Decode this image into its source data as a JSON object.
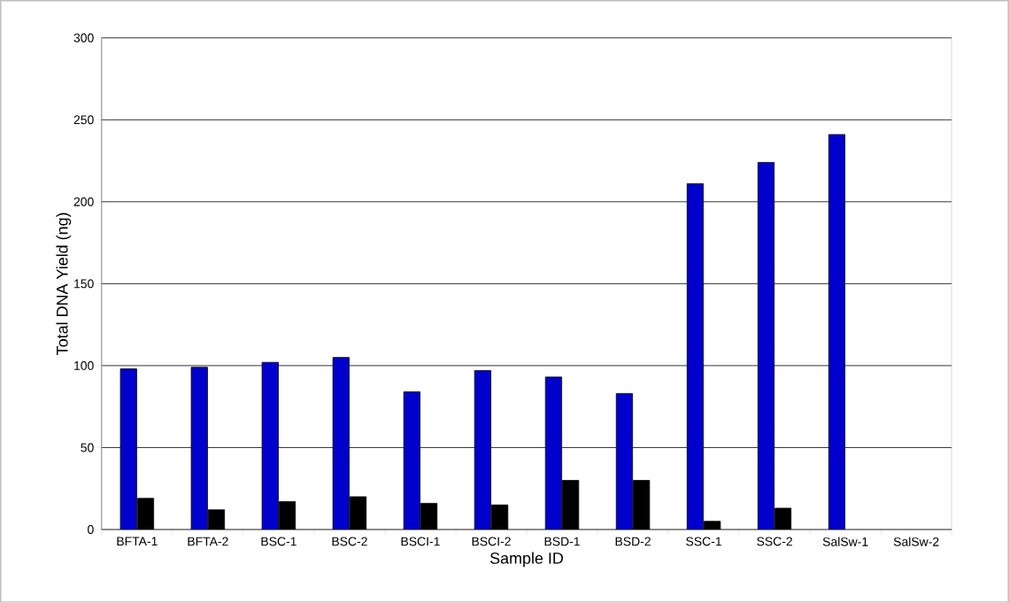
{
  "chart_data": {
    "type": "bar",
    "xlabel": "Sample ID",
    "ylabel": "Total DNA Yield (ng)",
    "categories": [
      "BFTA-1",
      "BFTA-2",
      "BSC-1",
      "BSC-2",
      "BSCI-1",
      "BSCI-2",
      "BSD-1",
      "BSD-2",
      "SSC-1",
      "SSC-2",
      "SalSw-1",
      "SalSw-2"
    ],
    "series": [
      {
        "color": "#0000cc",
        "values": [
          98,
          99,
          102,
          105,
          84,
          97,
          93,
          83,
          211,
          224,
          241,
          null
        ]
      },
      {
        "color": "#000000",
        "values": [
          19,
          12,
          17,
          20,
          16,
          15,
          30,
          30,
          5,
          13,
          null,
          null
        ]
      }
    ],
    "ylim": [
      0,
      300
    ],
    "yticks": [
      0,
      50,
      100,
      150,
      200,
      250,
      300
    ],
    "grid": "y"
  }
}
